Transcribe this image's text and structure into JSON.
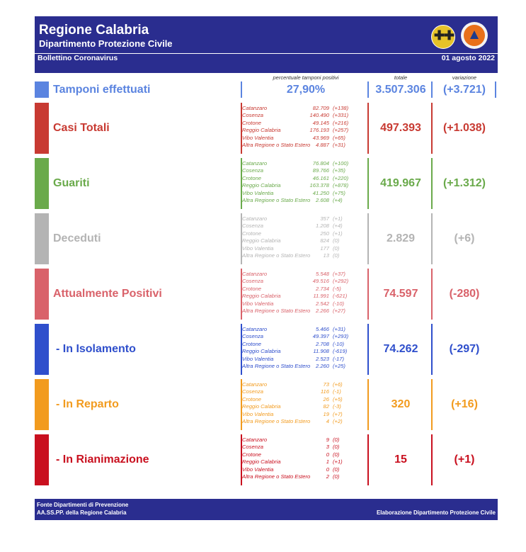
{
  "header": {
    "title": "Regione Calabria",
    "subtitle": "Dipartimento Protezione Civile",
    "bulletin": "Bollettino Coronavirus",
    "date": "01 agosto 2022"
  },
  "columns": {
    "percent_header": "percentuale tamponi positivi",
    "total_header": "totale",
    "variation_header": "variazione"
  },
  "tamponi": {
    "label": "Tamponi effettuati",
    "percent": "27,90%",
    "total": "3.507.306",
    "variation": "(+3.721)"
  },
  "colors": {
    "tamponi": "#5b84e0",
    "casi": "#c83a32",
    "guariti": "#6aaa4b",
    "deceduti": "#b4b4b4",
    "positivi": "#d9626a",
    "isolamento": "#2f4fcc",
    "reparto": "#f29b1e",
    "rianimazione": "#c9101f",
    "header_bg": "#2a2d8f"
  },
  "sections": [
    {
      "key": "casi",
      "label": "Casi Totali",
      "total": "497.393",
      "variation": "(+1.038)",
      "provinces": [
        {
          "name": "Catanzaro",
          "value": "82.709",
          "delta": "(+138)"
        },
        {
          "name": "Cosenza",
          "value": "140.490",
          "delta": "(+331)"
        },
        {
          "name": "Crotone",
          "value": "49.145",
          "delta": "(+216)"
        },
        {
          "name": "Reggio Calabria",
          "value": "176.193",
          "delta": "(+257)"
        },
        {
          "name": "Vibo Valentia",
          "value": "43.969",
          "delta": "(+65)"
        },
        {
          "name": "Altra Regione o Stato Estero",
          "value": "4.887",
          "delta": "(+31)"
        }
      ]
    },
    {
      "key": "guariti",
      "label": "Guariti",
      "total": "419.967",
      "variation": "(+1.312)",
      "provinces": [
        {
          "name": "Catanzaro",
          "value": "76.804",
          "delta": "(+100)"
        },
        {
          "name": "Cosenza",
          "value": "89.766",
          "delta": "(+35)"
        },
        {
          "name": "Crotone",
          "value": "46.161",
          "delta": "(+220)"
        },
        {
          "name": "Reggio Calabria",
          "value": "163.378",
          "delta": "(+878)"
        },
        {
          "name": "Vibo Valentia",
          "value": "41.250",
          "delta": "(+75)"
        },
        {
          "name": "Altra Regione o Stato Estero",
          "value": "2.608",
          "delta": "(+4)"
        }
      ]
    },
    {
      "key": "deceduti",
      "label": "Deceduti",
      "total": "2.829",
      "variation": "(+6)",
      "provinces": [
        {
          "name": "Catanzaro",
          "value": "357",
          "delta": "(+1)"
        },
        {
          "name": "Cosenza",
          "value": "1.208",
          "delta": "(+4)"
        },
        {
          "name": "Crotone",
          "value": "250",
          "delta": "(+1)"
        },
        {
          "name": "Reggio Calabria",
          "value": "824",
          "delta": "(0)"
        },
        {
          "name": "Vibo Valentia",
          "value": "177",
          "delta": "(0)"
        },
        {
          "name": "Altra Regione o Stato Estero",
          "value": "13",
          "delta": "(0)"
        }
      ]
    },
    {
      "key": "positivi",
      "label": "Attualmente Positivi",
      "total": "74.597",
      "variation": "(-280)",
      "provinces": [
        {
          "name": "Catanzaro",
          "value": "5.548",
          "delta": "(+37)"
        },
        {
          "name": "Cosenza",
          "value": "49.516",
          "delta": "(+292)"
        },
        {
          "name": "Crotone",
          "value": "2.734",
          "delta": "(-5)"
        },
        {
          "name": "Reggio Calabria",
          "value": "11.991",
          "delta": "(-621)"
        },
        {
          "name": "Vibo Valentia",
          "value": "2.542",
          "delta": "(-10)"
        },
        {
          "name": "Altra Regione o Stato Estero",
          "value": "2.266",
          "delta": "(+27)"
        }
      ]
    },
    {
      "key": "isolamento",
      "label": "- In Isolamento",
      "total": "74.262",
      "variation": "(-297)",
      "provinces": [
        {
          "name": "Catanzaro",
          "value": "5.466",
          "delta": "(+31)"
        },
        {
          "name": "Cosenza",
          "value": "49.397",
          "delta": "(+293)"
        },
        {
          "name": "Crotone",
          "value": "2.708",
          "delta": "(-10)"
        },
        {
          "name": "Reggio Calabria",
          "value": "11.908",
          "delta": "(-619)"
        },
        {
          "name": "Vibo Valentia",
          "value": "2.523",
          "delta": "(-17)"
        },
        {
          "name": "Altra Regione o Stato Estero",
          "value": "2.260",
          "delta": "(+25)"
        }
      ]
    },
    {
      "key": "reparto",
      "label": "- In Reparto",
      "total": "320",
      "variation": "(+16)",
      "provinces": [
        {
          "name": "Catanzaro",
          "value": "73",
          "delta": "(+6)"
        },
        {
          "name": "Cosenza",
          "value": "116",
          "delta": "(-1)"
        },
        {
          "name": "Crotone",
          "value": "26",
          "delta": "(+5)"
        },
        {
          "name": "Reggio Calabria",
          "value": "82",
          "delta": "(-3)"
        },
        {
          "name": "Vibo Valentia",
          "value": "19",
          "delta": "(+7)"
        },
        {
          "name": "Altra Regione o Stato Estero",
          "value": "4",
          "delta": "(+2)"
        }
      ]
    },
    {
      "key": "rianimazione",
      "label": "- In Rianimazione",
      "total": "15",
      "variation": "(+1)",
      "provinces": [
        {
          "name": "Catanzaro",
          "value": "9",
          "delta": "(0)"
        },
        {
          "name": "Cosenza",
          "value": "3",
          "delta": "(0)"
        },
        {
          "name": "Crotone",
          "value": "0",
          "delta": "(0)"
        },
        {
          "name": "Reggio Calabria",
          "value": "1",
          "delta": "(+1)"
        },
        {
          "name": "Vibo Valentia",
          "value": "0",
          "delta": "(0)"
        },
        {
          "name": "Altra Regione o Stato Estero",
          "value": "2",
          "delta": "(0)"
        }
      ]
    }
  ],
  "footer": {
    "line1": "Fonte Dipartimenti di Prevenzione",
    "line2": "AA.SS.PP.  della Regione Calabria",
    "credit": "Elaborazione Dipartimento Protezione Civile"
  }
}
